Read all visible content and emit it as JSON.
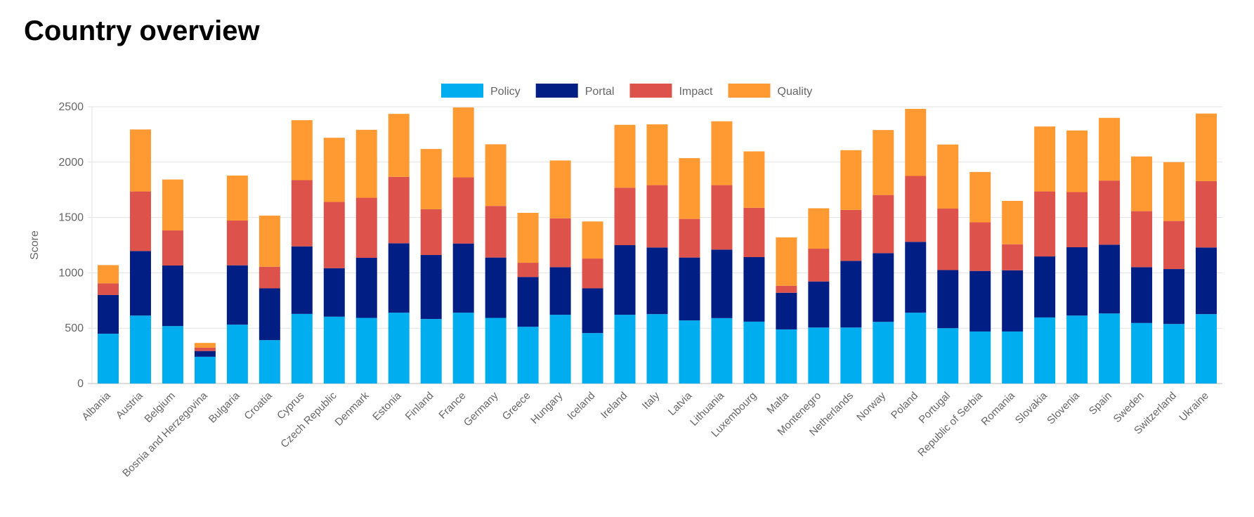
{
  "page_title": "Country overview",
  "chart_data": {
    "type": "bar",
    "stacked": true,
    "title": "",
    "xlabel": "",
    "ylabel": "Score",
    "ylim": [
      0,
      2500
    ],
    "yticks": [
      0,
      500,
      1000,
      1500,
      2000,
      2500
    ],
    "grid": true,
    "legend_position": "top",
    "categories": [
      "Albania",
      "Austria",
      "Belgium",
      "Bosnia and Herzegovina",
      "Bulgaria",
      "Croatia",
      "Cyprus",
      "Czech Republic",
      "Denmark",
      "Estonia",
      "Finland",
      "France",
      "Germany",
      "Greece",
      "Hungary",
      "Iceland",
      "Ireland",
      "Italy",
      "Latvia",
      "Lithuania",
      "Luxembourg",
      "Malta",
      "Montenegro",
      "Netherlands",
      "Norway",
      "Poland",
      "Portugal",
      "Republic of Serbia",
      "Romania",
      "Slovakia",
      "Slovenia",
      "Spain",
      "Sweden",
      "Switzerland",
      "Ukraine"
    ],
    "series": [
      {
        "name": "Policy",
        "color": "#00AEEF",
        "values": [
          450,
          614,
          519,
          242,
          532,
          392,
          629,
          604,
          593,
          640,
          583,
          640,
          593,
          513,
          621,
          456,
          621,
          627,
          570,
          591,
          559,
          489,
          506,
          506,
          557,
          640,
          500,
          470,
          470,
          597,
          614,
          633,
          547,
          538,
          627
        ]
      },
      {
        "name": "Portal",
        "color": "#001E84",
        "values": [
          350,
          583,
          547,
          52,
          536,
          468,
          610,
          438,
          543,
          627,
          578,
          625,
          545,
          449,
          430,
          404,
          629,
          602,
          568,
          619,
          583,
          331,
          416,
          602,
          621,
          640,
          525,
          547,
          553,
          551,
          617,
          621,
          504,
          496,
          602
        ]
      },
      {
        "name": "Impact",
        "color": "#DD524A",
        "values": [
          105,
          538,
          317,
          30,
          404,
          195,
          598,
          598,
          542,
          600,
          413,
          597,
          466,
          129,
          441,
          269,
          519,
          563,
          349,
          582,
          445,
          63,
          296,
          460,
          525,
          595,
          555,
          439,
          235,
          587,
          498,
          579,
          506,
          434,
          599
        ]
      },
      {
        "name": "Quality",
        "color": "#FF9A33",
        "values": [
          165,
          560,
          460,
          43,
          407,
          462,
          542,
          580,
          614,
          569,
          545,
          632,
          557,
          451,
          523,
          335,
          568,
          549,
          549,
          577,
          510,
          437,
          365,
          540,
          587,
          606,
          579,
          455,
          392,
          587,
          557,
          567,
          494,
          532,
          611
        ]
      }
    ]
  }
}
